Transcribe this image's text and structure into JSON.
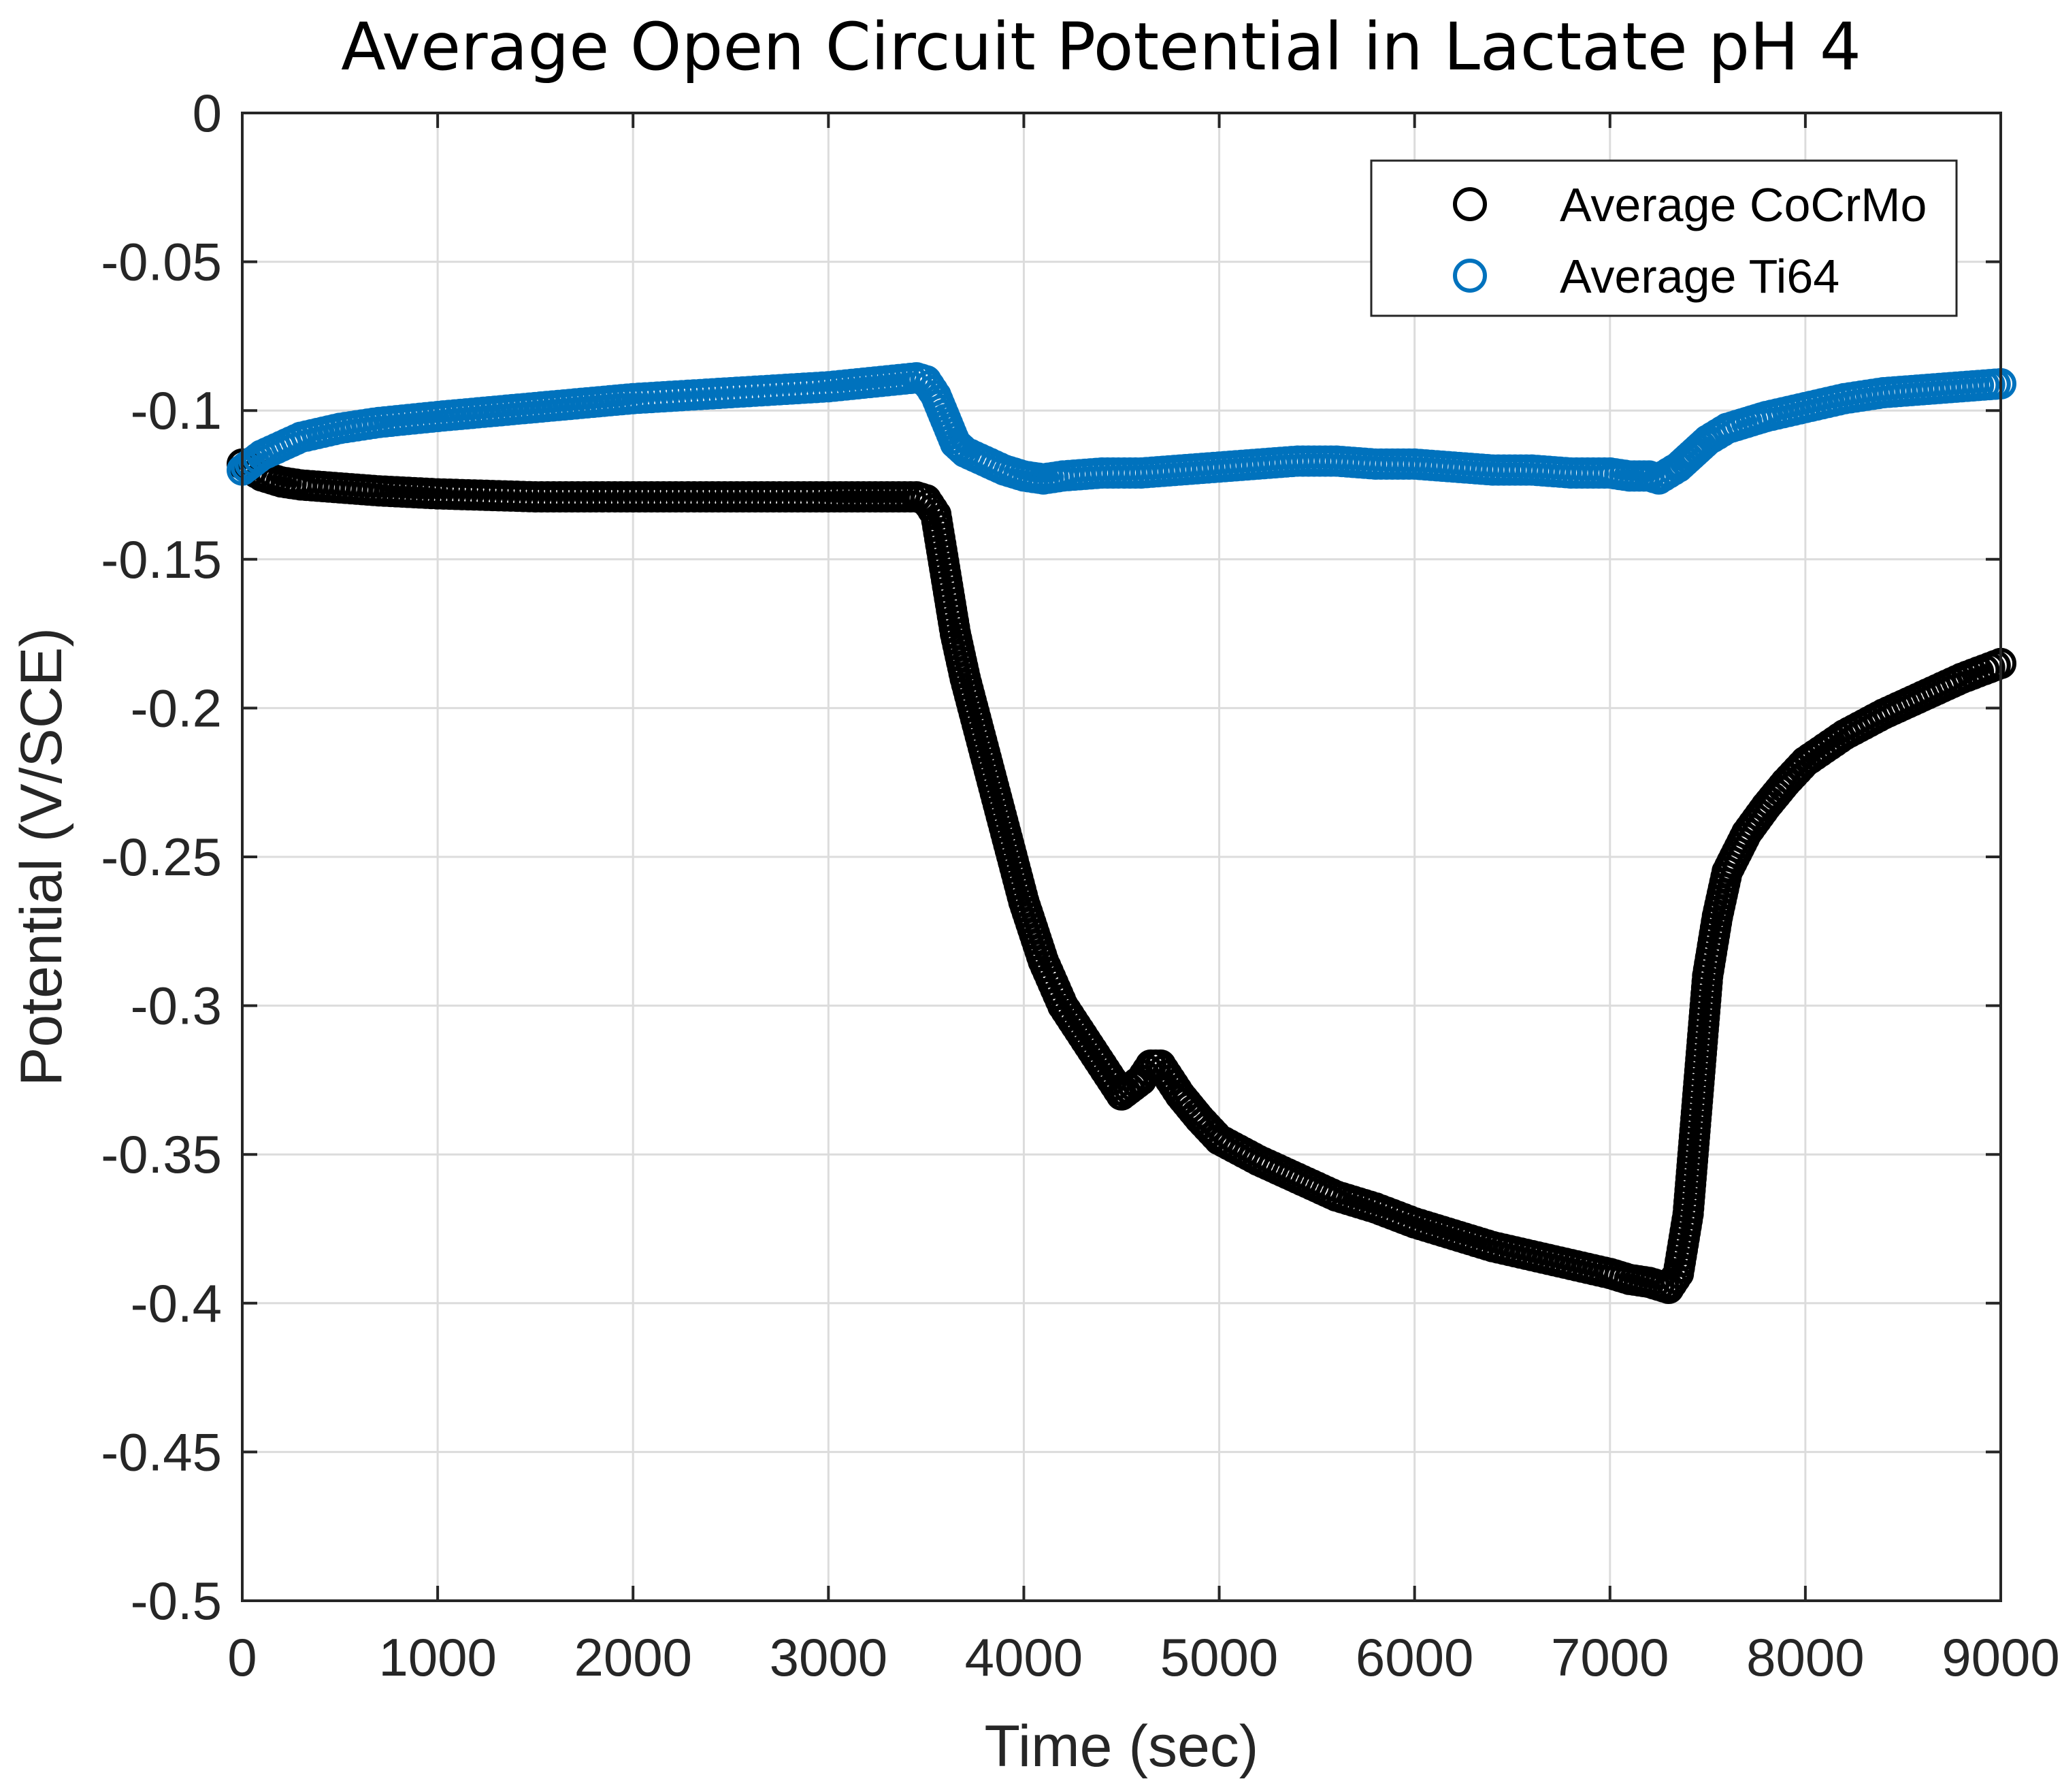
{
  "chart_data": {
    "type": "scatter",
    "title": "Average Open Circuit Potential in Lactate pH 4",
    "xlabel": "Time (sec)",
    "ylabel": "Potential (V/SCE)",
    "xlim": [
      0,
      9000
    ],
    "ylim": [
      -0.5,
      0
    ],
    "xticks": [
      0,
      1000,
      2000,
      3000,
      4000,
      5000,
      6000,
      7000,
      8000,
      9000
    ],
    "xtick_labels": [
      "0",
      "1000",
      "2000",
      "3000",
      "4000",
      "5000",
      "6000",
      "7000",
      "8000",
      "9000"
    ],
    "yticks": [
      0,
      -0.05,
      -0.1,
      -0.15,
      -0.2,
      -0.25,
      -0.3,
      -0.35,
      -0.4,
      -0.45,
      -0.5
    ],
    "ytick_labels": [
      "0",
      "-0.05",
      "-0.1",
      "-0.15",
      "-0.2",
      "-0.25",
      "-0.3",
      "-0.35",
      "-0.4",
      "-0.45",
      "-0.5"
    ],
    "grid": true,
    "legend_position": "top-right",
    "marker": "open-circle",
    "series": [
      {
        "name": "Average CoCrMo",
        "color": "#000000",
        "x": [
          0,
          100,
          200,
          300,
          500,
          700,
          1000,
          1500,
          2000,
          2500,
          3000,
          3300,
          3450,
          3500,
          3550,
          3600,
          3650,
          3700,
          3800,
          3900,
          4000,
          4100,
          4200,
          4300,
          4400,
          4500,
          4600,
          4650,
          4700,
          4750,
          4800,
          4900,
          5000,
          5200,
          5400,
          5600,
          5800,
          6000,
          6200,
          6400,
          6600,
          6800,
          7000,
          7100,
          7200,
          7250,
          7300,
          7350,
          7400,
          7450,
          7500,
          7550,
          7600,
          7700,
          7800,
          7900,
          8000,
          8200,
          8400,
          8600,
          8800,
          9000
        ],
        "y": [
          -0.118,
          -0.122,
          -0.124,
          -0.125,
          -0.126,
          -0.127,
          -0.128,
          -0.129,
          -0.129,
          -0.129,
          -0.129,
          -0.129,
          -0.129,
          -0.13,
          -0.135,
          -0.155,
          -0.175,
          -0.19,
          -0.215,
          -0.24,
          -0.265,
          -0.285,
          -0.3,
          -0.31,
          -0.32,
          -0.33,
          -0.325,
          -0.32,
          -0.32,
          -0.325,
          -0.33,
          -0.338,
          -0.345,
          -0.352,
          -0.358,
          -0.364,
          -0.368,
          -0.373,
          -0.377,
          -0.381,
          -0.384,
          -0.387,
          -0.39,
          -0.392,
          -0.393,
          -0.394,
          -0.395,
          -0.39,
          -0.37,
          -0.33,
          -0.29,
          -0.27,
          -0.255,
          -0.242,
          -0.233,
          -0.225,
          -0.218,
          -0.209,
          -0.202,
          -0.196,
          -0.19,
          -0.185
        ]
      },
      {
        "name": "Average Ti64",
        "color": "#0072BD",
        "x": [
          0,
          100,
          200,
          300,
          500,
          700,
          1000,
          1500,
          2000,
          2500,
          3000,
          3300,
          3450,
          3500,
          3550,
          3600,
          3650,
          3700,
          3800,
          3900,
          4000,
          4100,
          4200,
          4400,
          4600,
          4800,
          5000,
          5200,
          5400,
          5600,
          5800,
          6000,
          6200,
          6400,
          6600,
          6800,
          7000,
          7100,
          7200,
          7250,
          7300,
          7350,
          7400,
          7450,
          7500,
          7600,
          7700,
          7800,
          8000,
          8200,
          8400,
          8600,
          8800,
          9000
        ],
        "y": [
          -0.12,
          -0.115,
          -0.112,
          -0.109,
          -0.106,
          -0.104,
          -0.102,
          -0.099,
          -0.096,
          -0.094,
          -0.092,
          -0.09,
          -0.089,
          -0.09,
          -0.095,
          -0.103,
          -0.111,
          -0.114,
          -0.117,
          -0.12,
          -0.122,
          -0.123,
          -0.122,
          -0.121,
          -0.121,
          -0.12,
          -0.119,
          -0.118,
          -0.117,
          -0.117,
          -0.118,
          -0.118,
          -0.119,
          -0.12,
          -0.12,
          -0.121,
          -0.121,
          -0.122,
          -0.122,
          -0.123,
          -0.121,
          -0.119,
          -0.116,
          -0.113,
          -0.11,
          -0.106,
          -0.104,
          -0.102,
          -0.099,
          -0.096,
          -0.094,
          -0.093,
          -0.092,
          -0.091
        ]
      }
    ]
  }
}
